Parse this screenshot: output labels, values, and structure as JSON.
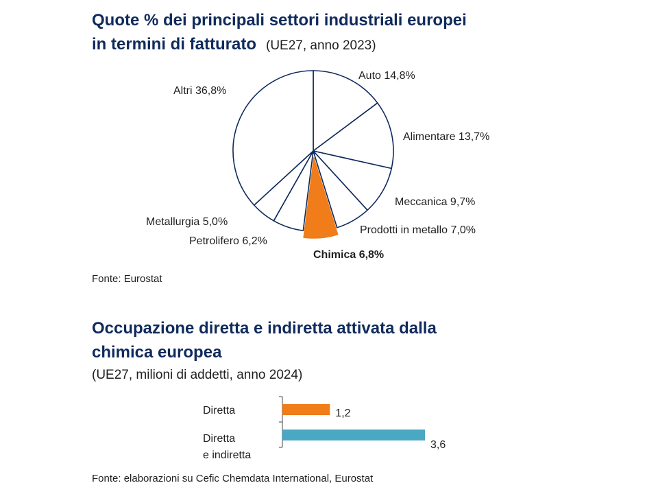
{
  "colors": {
    "title": "#0f2a5c",
    "outline": "#0f2a5c",
    "highlight": "#f07c1a",
    "teal": "#4aa8c4",
    "text": "#1f1f1f"
  },
  "pie_chart": {
    "title_line1": "Quote % dei principali settori industriali europei",
    "title_line2": "in termini di fatturato",
    "subtitle": "(UE27, anno 2023)",
    "source": "Fonte: Eurostat"
  },
  "bar_chart": {
    "title_line1": "Occupazione diretta e indiretta attivata dalla",
    "title_line2": "chimica europea",
    "subtitle": "(UE27, milioni di addetti, anno 2024)",
    "source": "Fonte: elaborazioni su Cefic Chemdata International, Eurostat"
  },
  "chart_data": [
    {
      "type": "pie",
      "title": "Quote % dei principali settori industriali europei in termini di fatturato",
      "subtitle": "(UE27, anno 2023)",
      "unit": "%",
      "start_angle_deg": 0,
      "direction": "clockwise",
      "slices": [
        {
          "label": "Auto",
          "value": 14.8,
          "text": "Auto 14,8%",
          "highlight": false
        },
        {
          "label": "Alimentare",
          "value": 13.7,
          "text": "Alimentare 13,7%",
          "highlight": false
        },
        {
          "label": "Meccanica",
          "value": 9.7,
          "text": "Meccanica 9,7%",
          "highlight": false
        },
        {
          "label": "Prodotti in metallo",
          "value": 7.0,
          "text": "Prodotti in metallo 7,0%",
          "highlight": false
        },
        {
          "label": "Chimica",
          "value": 6.8,
          "text": "Chimica 6,8%",
          "highlight": true
        },
        {
          "label": "Petrolifero",
          "value": 6.2,
          "text": "Petrolifero 6,2%",
          "highlight": false
        },
        {
          "label": "Metallurgia",
          "value": 5.0,
          "text": "Metallurgia 5,0%",
          "highlight": false
        },
        {
          "label": "Altri",
          "value": 36.8,
          "text": "Altri 36,8%",
          "highlight": false
        }
      ]
    },
    {
      "type": "bar",
      "orientation": "horizontal",
      "title": "Occupazione diretta e indiretta attivata dalla chimica europea",
      "subtitle": "(UE27, milioni di addetti, anno 2024)",
      "xlim": [
        0,
        3.6
      ],
      "categories": [
        {
          "label_lines": [
            "Diretta"
          ],
          "value": 1.2,
          "value_text": "1,2",
          "color": "#f07c1a"
        },
        {
          "label_lines": [
            "Diretta",
            "e indiretta"
          ],
          "value": 3.6,
          "value_text": "3,6",
          "color": "#4aa8c4"
        }
      ]
    }
  ]
}
